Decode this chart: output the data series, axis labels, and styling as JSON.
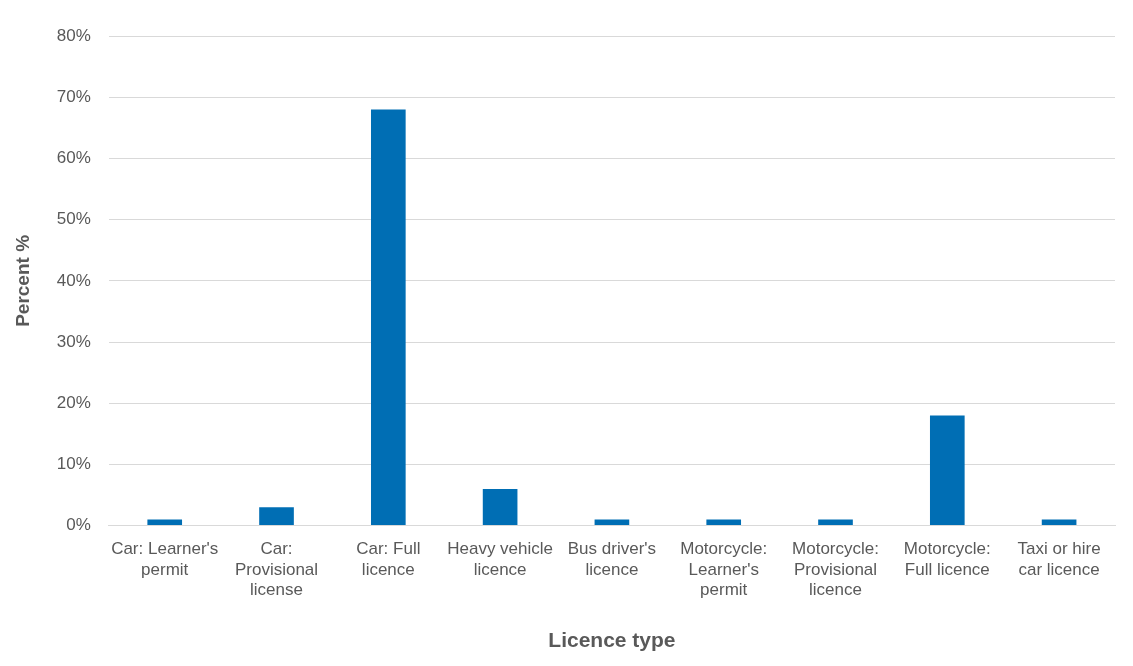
{
  "chart_data": {
    "type": "bar",
    "xlabel": "Licence type",
    "ylabel": "Percent %",
    "categories": [
      "Car: Learner's permit",
      "Car: Provisional license",
      "Car: Full licence",
      "Heavy vehicle licence",
      "Bus driver's licence",
      "Motorcycle: Learner's permit",
      "Motorcycle: Provisional licence",
      "Motorcycle: Full licence",
      "Taxi or hire car licence"
    ],
    "values": [
      1,
      3,
      68,
      6,
      1,
      1,
      1,
      18,
      1
    ],
    "color": "#006eb4",
    "ylim": [
      0,
      80
    ],
    "yticks": [
      {
        "value": 0,
        "label": "0%"
      },
      {
        "value": 10,
        "label": "10%"
      },
      {
        "value": 20,
        "label": "20%"
      },
      {
        "value": 30,
        "label": "30%"
      },
      {
        "value": 40,
        "label": "40%"
      },
      {
        "value": 50,
        "label": "50%"
      },
      {
        "value": 60,
        "label": "60%"
      },
      {
        "value": 70,
        "label": "70%"
      },
      {
        "value": 80,
        "label": "80%"
      }
    ],
    "grid": "y",
    "legend": false
  }
}
